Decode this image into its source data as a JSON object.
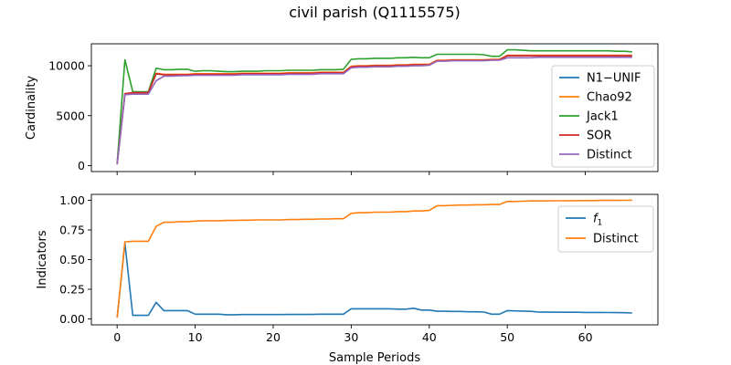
{
  "figure": {
    "title": "civil parish (Q1115575)",
    "xlabel": "Sample Periods"
  },
  "chart_data": [
    {
      "type": "line",
      "ylabel": "Cardinality",
      "xlim": [
        -3.3,
        69.3
      ],
      "ylim": [
        -600,
        12200
      ],
      "xticks": [
        0,
        10,
        20,
        30,
        40,
        50,
        60
      ],
      "yticks": [
        0,
        5000,
        10000
      ],
      "show_xticklabels": false,
      "grid": false,
      "legend_position": "right",
      "x": [
        0,
        1,
        2,
        3,
        4,
        5,
        6,
        7,
        8,
        9,
        10,
        11,
        12,
        13,
        14,
        15,
        16,
        17,
        18,
        19,
        20,
        21,
        22,
        23,
        24,
        25,
        26,
        27,
        28,
        29,
        30,
        31,
        32,
        33,
        34,
        35,
        36,
        37,
        38,
        39,
        40,
        41,
        42,
        43,
        44,
        45,
        46,
        47,
        48,
        49,
        50,
        51,
        52,
        53,
        54,
        55,
        56,
        57,
        58,
        59,
        60,
        61,
        62,
        63,
        64,
        65,
        66
      ],
      "series": [
        {
          "name": "N1−UNIF",
          "color": "#1f77b4",
          "values": [
            150,
            7200,
            7300,
            7300,
            7300,
            9200,
            9100,
            9100,
            9100,
            9100,
            9150,
            9150,
            9150,
            9150,
            9150,
            9150,
            9200,
            9200,
            9200,
            9200,
            9200,
            9200,
            9250,
            9250,
            9250,
            9250,
            9300,
            9300,
            9300,
            9300,
            9900,
            9950,
            9950,
            10000,
            10000,
            10000,
            10050,
            10050,
            10100,
            10100,
            10100,
            10500,
            10500,
            10550,
            10550,
            10550,
            10550,
            10550,
            10600,
            10600,
            11000,
            11000,
            11000,
            11000,
            11000,
            11000,
            11000,
            11000,
            11000,
            11000,
            11000,
            11000,
            11000,
            11000,
            11000,
            11000,
            11000
          ]
        },
        {
          "name": "Chao92",
          "color": "#ff7f0e",
          "values": [
            150,
            7200,
            7300,
            7300,
            7300,
            9250,
            9150,
            9150,
            9150,
            9150,
            9200,
            9200,
            9200,
            9200,
            9200,
            9200,
            9250,
            9250,
            9250,
            9250,
            9250,
            9250,
            9300,
            9300,
            9300,
            9300,
            9350,
            9350,
            9350,
            9350,
            9950,
            10000,
            10000,
            10050,
            10050,
            10050,
            10100,
            10100,
            10150,
            10150,
            10150,
            10550,
            10550,
            10600,
            10600,
            10600,
            10600,
            10600,
            10650,
            10650,
            11050,
            11050,
            11050,
            11050,
            11050,
            11050,
            11050,
            11050,
            11050,
            11050,
            11050,
            11050,
            11050,
            11050,
            11050,
            11050,
            11050
          ]
        },
        {
          "name": "Jack1",
          "color": "#2ca02c",
          "values": [
            200,
            10600,
            7400,
            7400,
            7400,
            9750,
            9600,
            9600,
            9650,
            9650,
            9450,
            9500,
            9500,
            9450,
            9400,
            9400,
            9450,
            9450,
            9450,
            9500,
            9500,
            9500,
            9550,
            9550,
            9550,
            9550,
            9600,
            9600,
            9600,
            9650,
            10650,
            10700,
            10700,
            10750,
            10750,
            10750,
            10800,
            10800,
            10850,
            10800,
            10800,
            11150,
            11150,
            11150,
            11150,
            11150,
            11150,
            11100,
            10950,
            10950,
            11600,
            11600,
            11550,
            11500,
            11500,
            11500,
            11500,
            11500,
            11500,
            11500,
            11500,
            11500,
            11500,
            11500,
            11450,
            11450,
            11400
          ]
        },
        {
          "name": "SOR",
          "color": "#d62728",
          "values": [
            150,
            7200,
            7300,
            7300,
            7300,
            9200,
            9100,
            9100,
            9100,
            9100,
            9150,
            9150,
            9150,
            9150,
            9150,
            9150,
            9200,
            9200,
            9200,
            9200,
            9200,
            9200,
            9250,
            9250,
            9250,
            9250,
            9300,
            9300,
            9300,
            9300,
            9900,
            9950,
            9950,
            10000,
            10000,
            10000,
            10050,
            10050,
            10100,
            10100,
            10100,
            10500,
            10500,
            10550,
            10550,
            10550,
            10550,
            10550,
            10600,
            10600,
            11000,
            11000,
            11000,
            11000,
            11000,
            11000,
            11000,
            11000,
            11000,
            11000,
            11000,
            11000,
            11000,
            11000,
            11000,
            11000,
            11000
          ]
        },
        {
          "name": "Distinct",
          "color": "#9467bd",
          "values": [
            100,
            7100,
            7150,
            7150,
            7150,
            8500,
            8950,
            8950,
            9000,
            9000,
            9050,
            9050,
            9050,
            9050,
            9050,
            9050,
            9100,
            9100,
            9100,
            9100,
            9100,
            9100,
            9150,
            9150,
            9150,
            9150,
            9200,
            9200,
            9200,
            9200,
            9800,
            9850,
            9850,
            9900,
            9900,
            9900,
            9950,
            9950,
            10000,
            10000,
            10050,
            10450,
            10450,
            10500,
            10500,
            10500,
            10500,
            10500,
            10550,
            10550,
            10800,
            10800,
            10800,
            10800,
            10850,
            10850,
            10850,
            10850,
            10850,
            10850,
            10850,
            10850,
            10850,
            10850,
            10850,
            10850,
            10850
          ]
        }
      ]
    },
    {
      "type": "line",
      "ylabel": "Indicators",
      "xlim": [
        -3.3,
        69.3
      ],
      "ylim": [
        -0.05,
        1.05
      ],
      "xticks": [
        0,
        10,
        20,
        30,
        40,
        50,
        60
      ],
      "yticks": [
        0.0,
        0.25,
        0.5,
        0.75,
        1.0
      ],
      "ytick_labels": [
        "0.00",
        "0.25",
        "0.50",
        "0.75",
        "1.00"
      ],
      "show_xticklabels": true,
      "grid": false,
      "legend_position": "top-right",
      "x": [
        0,
        1,
        2,
        3,
        4,
        5,
        6,
        7,
        8,
        9,
        10,
        11,
        12,
        13,
        14,
        15,
        16,
        17,
        18,
        19,
        20,
        21,
        22,
        23,
        24,
        25,
        26,
        27,
        28,
        29,
        30,
        31,
        32,
        33,
        34,
        35,
        36,
        37,
        38,
        39,
        40,
        41,
        42,
        43,
        44,
        45,
        46,
        47,
        48,
        49,
        50,
        51,
        52,
        53,
        54,
        55,
        56,
        57,
        58,
        59,
        60,
        61,
        62,
        63,
        64,
        65,
        66
      ],
      "series": [
        {
          "name": "f",
          "name_subscript": "1",
          "color": "#1f77b4",
          "values": [
            0.01,
            0.64,
            0.03,
            0.03,
            0.03,
            0.14,
            0.07,
            0.07,
            0.07,
            0.07,
            0.04,
            0.04,
            0.04,
            0.04,
            0.035,
            0.035,
            0.037,
            0.037,
            0.037,
            0.037,
            0.037,
            0.037,
            0.038,
            0.038,
            0.038,
            0.038,
            0.04,
            0.04,
            0.04,
            0.04,
            0.085,
            0.085,
            0.085,
            0.085,
            0.085,
            0.085,
            0.082,
            0.082,
            0.09,
            0.075,
            0.075,
            0.065,
            0.065,
            0.063,
            0.063,
            0.06,
            0.06,
            0.058,
            0.04,
            0.04,
            0.07,
            0.068,
            0.066,
            0.064,
            0.058,
            0.057,
            0.057,
            0.056,
            0.056,
            0.056,
            0.055,
            0.055,
            0.055,
            0.054,
            0.053,
            0.052,
            0.05
          ]
        },
        {
          "name": "Distinct",
          "color": "#ff7f0e",
          "values": [
            0.01,
            0.65,
            0.655,
            0.655,
            0.655,
            0.78,
            0.815,
            0.815,
            0.82,
            0.82,
            0.825,
            0.828,
            0.828,
            0.828,
            0.83,
            0.83,
            0.832,
            0.832,
            0.835,
            0.835,
            0.835,
            0.835,
            0.838,
            0.838,
            0.84,
            0.84,
            0.842,
            0.842,
            0.845,
            0.845,
            0.89,
            0.895,
            0.895,
            0.9,
            0.9,
            0.9,
            0.905,
            0.905,
            0.91,
            0.91,
            0.915,
            0.955,
            0.955,
            0.958,
            0.96,
            0.96,
            0.962,
            0.962,
            0.965,
            0.965,
            0.99,
            0.99,
            0.992,
            0.995,
            0.995,
            0.995,
            0.996,
            0.996,
            0.997,
            0.997,
            0.998,
            0.998,
            0.999,
            0.999,
            0.999,
            1.0,
            1.0
          ]
        }
      ]
    }
  ]
}
